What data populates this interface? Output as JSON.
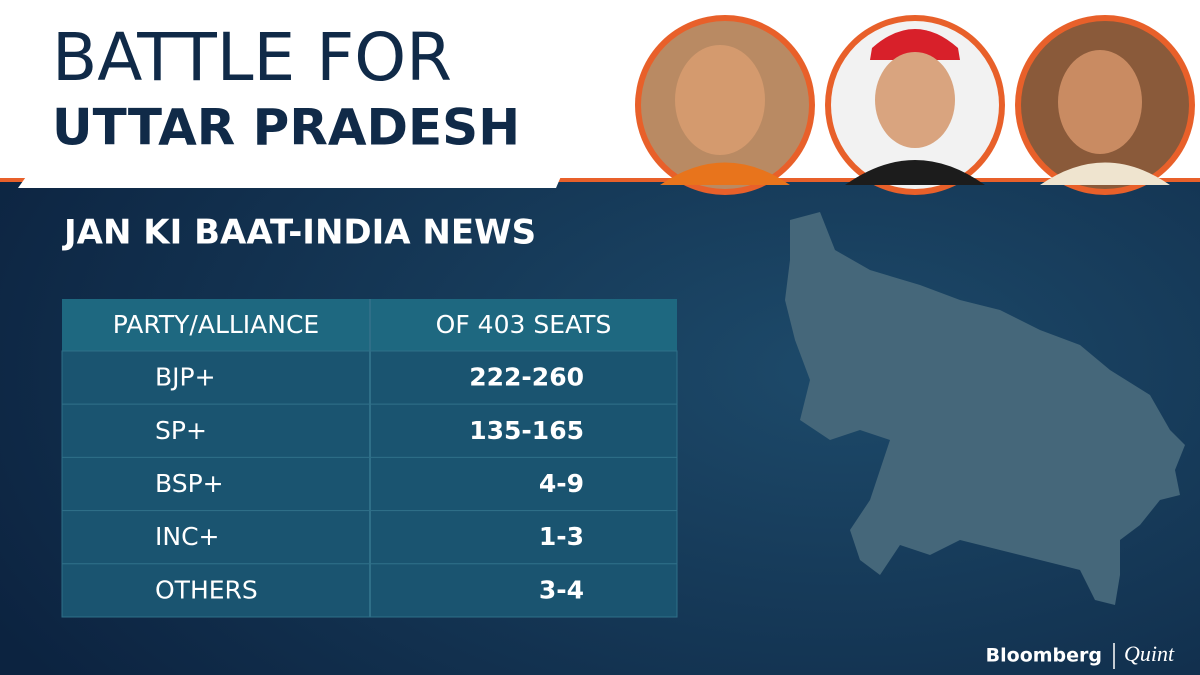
{
  "header": {
    "title_line1": "BATTLE FOR",
    "title_line2": "UTTAR PRADESH"
  },
  "subtitle": "JAN KI BAAT-INDIA NEWS",
  "table": {
    "columns": [
      "PARTY/ALLIANCE",
      "OF 403 SEATS"
    ],
    "rows": [
      [
        "BJP+",
        "222-260"
      ],
      [
        "SP+",
        "135-165"
      ],
      [
        "BSP+",
        "4-9"
      ],
      [
        "INC+",
        "1-3"
      ],
      [
        "OTHERS",
        "3-4"
      ]
    ]
  },
  "branding": {
    "left": "Bloomberg",
    "right": "Quint"
  }
}
